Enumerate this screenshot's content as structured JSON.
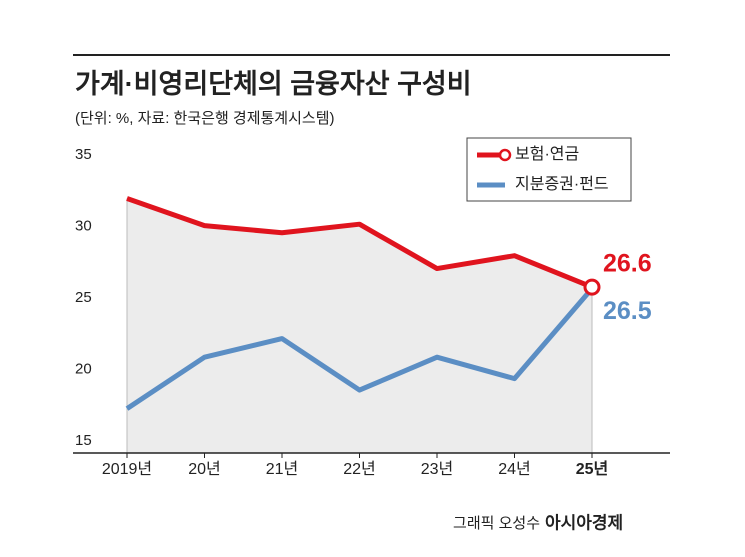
{
  "chart_data": {
    "type": "line",
    "title": "가계·비영리단체의 금융자산 구성비",
    "subtitle": "(단위: %, 자료: 한국은행 경제통계시스템)",
    "credit": "그래픽 오성수",
    "brand": "아시아경제",
    "categories": [
      "2019년",
      "20년",
      "21년",
      "22년",
      "23년",
      "24년",
      "25년"
    ],
    "series": [
      {
        "name": "보험·연금",
        "color": "#e0141e",
        "values": [
          32.8,
          30.9,
          30.4,
          31.0,
          27.9,
          28.8,
          26.6
        ]
      },
      {
        "name": "지분증권·펀드",
        "color": "#5b8ec4",
        "values": [
          18.1,
          21.7,
          23.0,
          19.4,
          21.7,
          20.2,
          26.5
        ]
      }
    ],
    "ylim": [
      15,
      35
    ],
    "yticks": [
      15,
      20,
      25,
      30,
      35
    ],
    "legend": "top-right",
    "area_fill": "#ececec"
  }
}
